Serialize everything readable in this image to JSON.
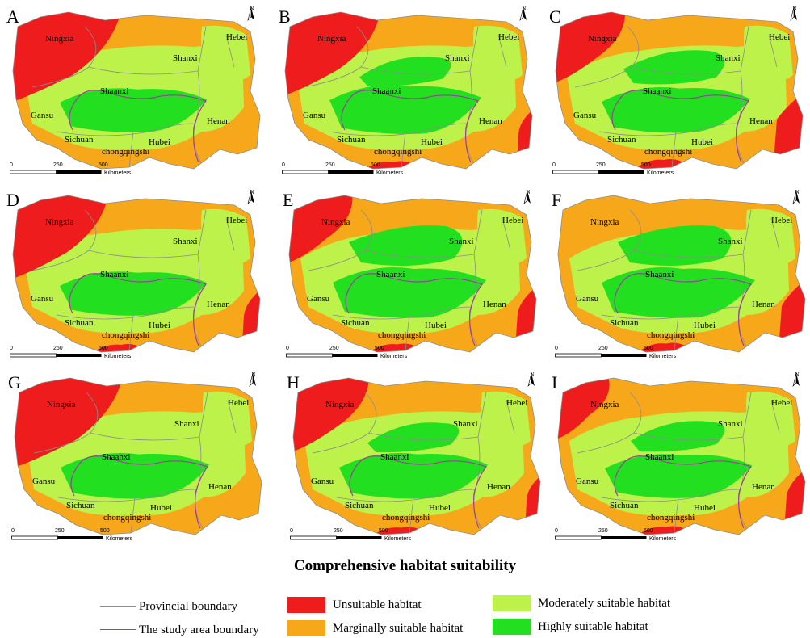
{
  "colors": {
    "unsuitable": "#ee1c1c",
    "marginal": "#f6a81a",
    "moderate": "#bdf24a",
    "high": "#22e01f",
    "provincial_boundary": "#8c8c8c",
    "study_boundary": "#a23aa6"
  },
  "panels": [
    {
      "letter": "A",
      "north": "N",
      "scale": {
        "ticks": [
          "0",
          "250",
          "500"
        ],
        "unit": "Kilometers"
      },
      "labels": {
        "ningxia": "Ningxia",
        "shanxi": "Shanxi",
        "hebei": "Hebei",
        "shaanxi": "Shaanxi",
        "gansu": "Gansu",
        "henan": "Henan",
        "sichuan": "Sichuan",
        "hubei": "Hubei",
        "chongqing": "chongqingshi"
      }
    },
    {
      "letter": "B",
      "north": "N",
      "scale": {
        "ticks": [
          "0",
          "250",
          "500"
        ],
        "unit": "Kilometers"
      },
      "labels": {
        "ningxia": "Ningxia",
        "shanxi": "Shanxi",
        "hebei": "Hebei",
        "shaanxi": "Shaanxi",
        "gansu": "Gansu",
        "henan": "Henan",
        "sichuan": "Sichuan",
        "hubei": "Hubei",
        "chongqing": "chongqingshi"
      }
    },
    {
      "letter": "C",
      "north": "N",
      "scale": {
        "ticks": [
          "0",
          "250",
          "500"
        ],
        "unit": "Kilometers"
      },
      "labels": {
        "ningxia": "Ningxia",
        "shanxi": "Shanxi",
        "hebei": "Hebei",
        "shaanxi": "Shaanxi",
        "gansu": "Gansu",
        "henan": "Henan",
        "sichuan": "Sichuan",
        "hubei": "Hubei",
        "chongqing": "chongqingshi"
      }
    },
    {
      "letter": "D",
      "north": "N",
      "scale": {
        "ticks": [
          "0",
          "250",
          "500"
        ],
        "unit": "Kilometers"
      },
      "labels": {
        "ningxia": "Ningxia",
        "shanxi": "Shanxi",
        "hebei": "Hebei",
        "shaanxi": "Shaanxi",
        "gansu": "Gansu",
        "henan": "Henan",
        "sichuan": "Sichuan",
        "hubei": "Hubei",
        "chongqing": "chongqingshi"
      }
    },
    {
      "letter": "E",
      "north": "N",
      "scale": {
        "ticks": [
          "0",
          "250",
          "500"
        ],
        "unit": "Kilometers"
      },
      "labels": {
        "ningxia": "Ningxia",
        "shanxi": "Shanxi",
        "hebei": "Hebei",
        "shaanxi": "Shaanxi",
        "gansu": "Gansu",
        "henan": "Henan",
        "sichuan": "Sichuan",
        "hubei": "Hubei",
        "chongqing": "chongqingshi"
      }
    },
    {
      "letter": "F",
      "north": "N",
      "scale": {
        "ticks": [
          "0",
          "250",
          "500"
        ],
        "unit": "Kilometers"
      },
      "labels": {
        "ningxia": "Ningxia",
        "shanxi": "Shanxi",
        "hebei": "Hebei",
        "shaanxi": "Shaanxi",
        "gansu": "Gansu",
        "henan": "Henan",
        "sichuan": "Sichuan",
        "hubei": "Hubei",
        "chongqing": "chongqingshi"
      }
    },
    {
      "letter": "G",
      "north": "N",
      "scale": {
        "ticks": [
          "0",
          "250",
          "500"
        ],
        "unit": "Kilometers"
      },
      "labels": {
        "ningxia": "Ningxia",
        "shanxi": "Shanxi",
        "hebei": "Hebei",
        "shaanxi": "Shaanxi",
        "gansu": "Gansu",
        "henan": "Henan",
        "sichuan": "Sichuan",
        "hubei": "Hubei",
        "chongqing": "chongqingshi"
      }
    },
    {
      "letter": "H",
      "north": "N",
      "scale": {
        "ticks": [
          "0",
          "250",
          "500"
        ],
        "unit": "Kilometers"
      },
      "labels": {
        "ningxia": "Ningxia",
        "shanxi": "Shanxi",
        "hebei": "Hebei",
        "shaanxi": "Shaanxi",
        "gansu": "Gansu",
        "henan": "Henan",
        "sichuan": "Sichuan",
        "hubei": "Hubei",
        "chongqing": "chongqingshi"
      }
    },
    {
      "letter": "I",
      "north": "N",
      "scale": {
        "ticks": [
          "0",
          "250",
          "500"
        ],
        "unit": "Kilometers"
      },
      "labels": {
        "ningxia": "Ningxia",
        "shanxi": "Shanxi",
        "hebei": "Hebei",
        "shaanxi": "Shaanxi",
        "gansu": "Gansu",
        "henan": "Henan",
        "sichuan": "Sichuan",
        "hubei": "Hubei",
        "chongqing": "chongqingshi"
      }
    }
  ],
  "title": "Comprehensive habitat suitability",
  "legend": {
    "provincial_boundary": "Provincial boundary",
    "study_area_boundary": "The study area boundary",
    "unsuitable": "Unsuitable habitat",
    "marginal": "Marginally suitable habitat",
    "moderate": "Moderately suitable habitat",
    "high": "Highly suitable habitat"
  }
}
